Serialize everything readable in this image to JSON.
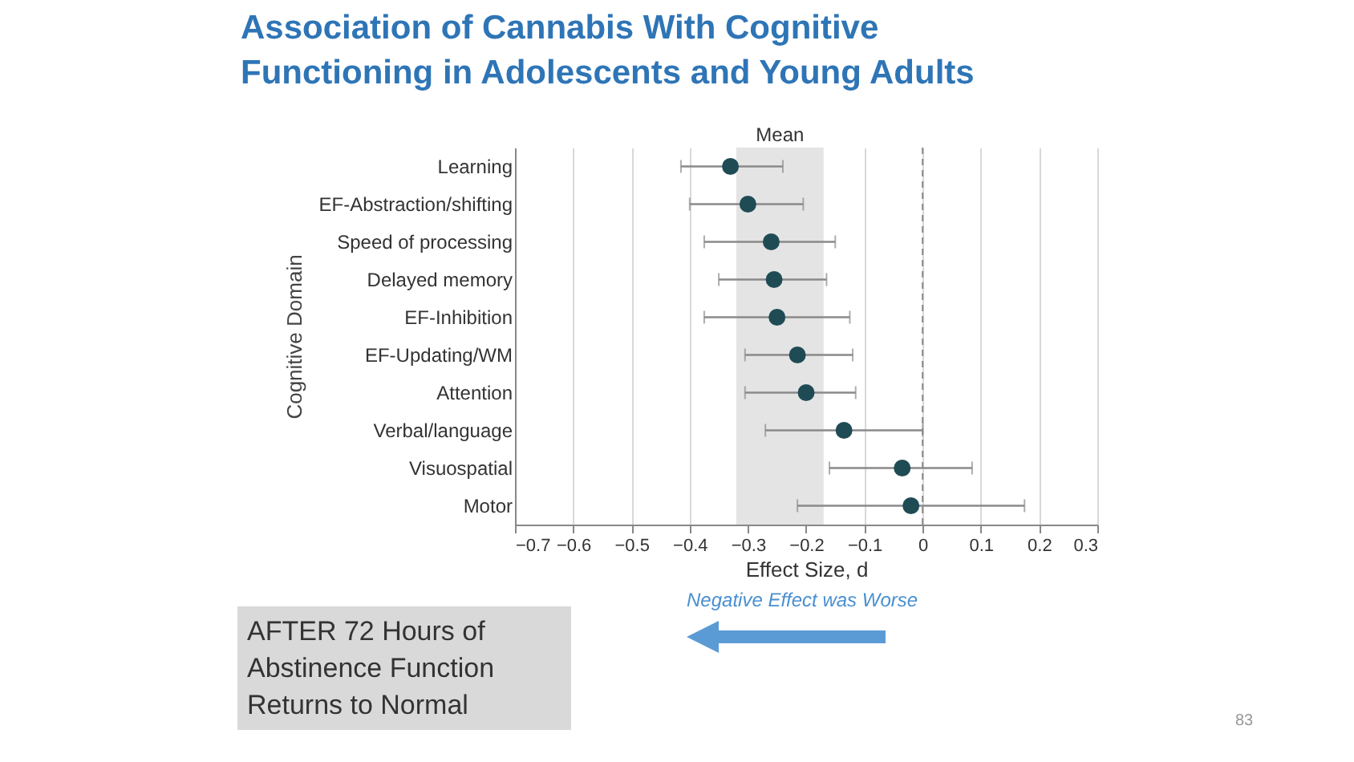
{
  "chart_data": {
    "type": "scatter",
    "title": "Association of Cannabis With Cognitive Functioning in Adolescents and Young Adults",
    "xlabel": "Effect Size, d",
    "ylabel": "Cognitive Domain",
    "categories": [
      "Learning",
      "EF-Abstraction/shifting",
      "Speed of processing",
      "Delayed memory",
      "EF-Inhibition",
      "EF-Updating/WM",
      "Attention",
      "Verbal/language",
      "Visuospatial",
      "Motor"
    ],
    "orientation": "horizontal",
    "series": [
      {
        "color": "#1f4b55",
        "values": [
          -0.33,
          -0.3,
          -0.26,
          -0.255,
          -0.25,
          -0.215,
          -0.2,
          -0.135,
          -0.035,
          -0.02
        ],
        "errors": [
          [
            -0.415,
            -0.24
          ],
          [
            -0.4,
            -0.205
          ],
          [
            -0.375,
            -0.15
          ],
          [
            -0.35,
            -0.165
          ],
          [
            -0.375,
            -0.125
          ],
          [
            -0.305,
            -0.12
          ],
          [
            -0.305,
            -0.115
          ],
          [
            -0.27,
            0
          ],
          [
            -0.16,
            0.085
          ],
          [
            -0.215,
            0.175
          ]
        ]
      }
    ],
    "xlim": [
      -0.7,
      0.3
    ],
    "xticks": [
      {
        "value": -0.7,
        "label": "−0.7"
      },
      {
        "value": -0.6,
        "label": "−0.6"
      },
      {
        "value": -0.5,
        "label": "−0.5"
      },
      {
        "value": -0.4,
        "label": "−0.4"
      },
      {
        "value": -0.3,
        "label": "−0.3"
      },
      {
        "value": -0.2,
        "label": "−0.2"
      },
      {
        "value": -0.1,
        "label": "−0.1"
      },
      0,
      0.1,
      0.2,
      0.3
    ],
    "grid": "x",
    "marker": "circle",
    "bands": [
      {
        "axis": "x",
        "from": -0.32,
        "to": -0.17,
        "label": "Mean",
        "color": "#e4e4e4"
      }
    ],
    "ref_lines": [
      {
        "axis": "x",
        "value": 0,
        "line_style": "dashed",
        "color": "#888888"
      }
    ],
    "annotations": [
      "AFTER 72 Hours of Abstinence Function Returns to Normal",
      "Negative Effect was Worse",
      "83"
    ]
  }
}
